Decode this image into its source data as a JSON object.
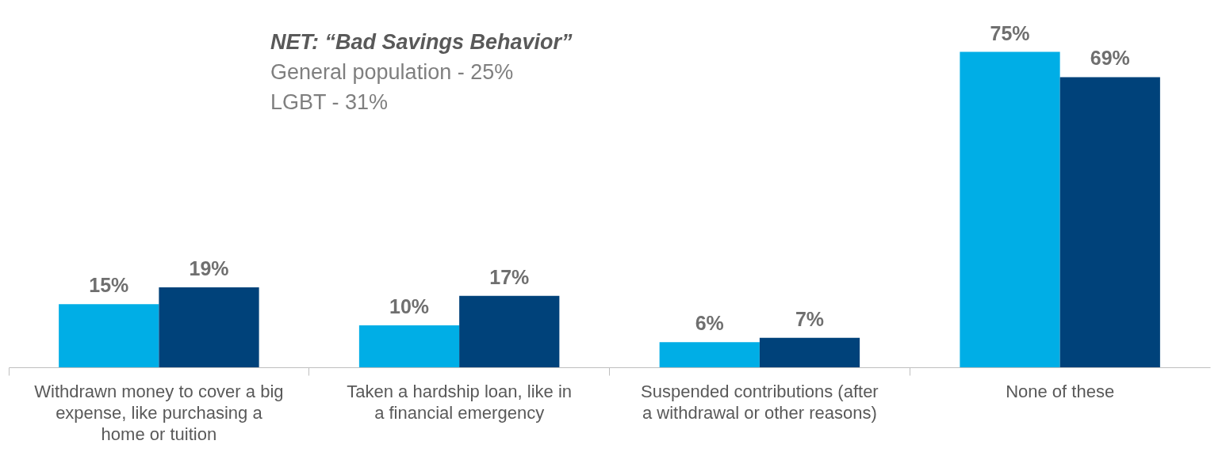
{
  "chart_data": {
    "type": "bar",
    "categories": [
      "Withdrawn money to cover a big expense, like purchasing a home or tuition",
      "Taken a hardship loan, like in a financial emergency",
      "Suspended contributions (after a withdrawal or other reasons)",
      "None of these"
    ],
    "series": [
      {
        "color": "#00aee6",
        "values": [
          15,
          10,
          6,
          75
        ],
        "value_labels": [
          "15%",
          "10%",
          "6%",
          "75%"
        ]
      },
      {
        "color": "#00427a",
        "values": [
          19,
          17,
          7,
          69
        ],
        "value_labels": [
          "19%",
          "17%",
          "7%",
          "69%"
        ]
      }
    ],
    "annotations": [
      "NET: “Bad Savings Behavior”",
      "General population - 25%",
      "LGBT - 31%"
    ],
    "tick_labels": "x",
    "grid": false,
    "legend": false
  }
}
